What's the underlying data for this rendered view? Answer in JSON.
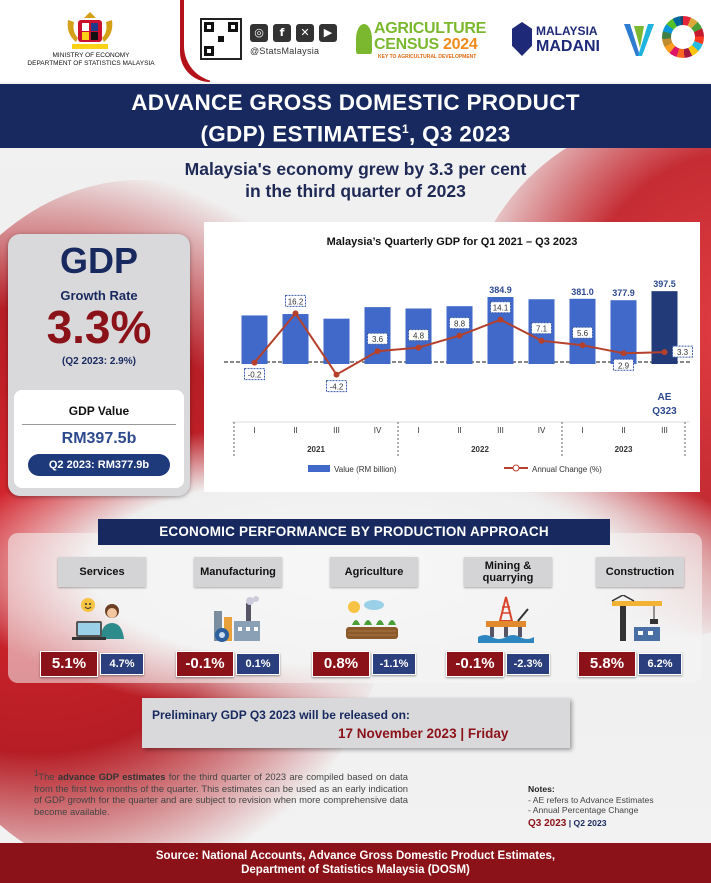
{
  "header": {
    "ministry_line1": "MINISTRY OF ECONOMY",
    "ministry_line2": "DEPARTMENT OF STATISTICS MALAYSIA",
    "social_handle": "@StatsMalaysia",
    "social_icons": [
      "instagram-icon",
      "facebook-icon",
      "x-icon",
      "youtube-icon"
    ],
    "agri_line1": "AGRICULTURE",
    "agri_line2": "CENSUS",
    "agri_year": "2024",
    "agri_tagline": "KEY TO AGRICULTURAL DEVELOPMENT",
    "madani_line1": "MALAYSIA",
    "madani_line2": "MADANI"
  },
  "title": {
    "line1": "ADVANCE GROSS DOMESTIC PRODUCT",
    "line2_a": "(GDP) ESTIMATES",
    "line2_sup": "1",
    "line2_b": ", Q3 2023"
  },
  "subtitle": {
    "line1": "Malaysia's economy grew by 3.3 per cent",
    "line2": "in the third quarter of 2023"
  },
  "gdp": {
    "heading": "GDP",
    "growth_label": "Growth Rate",
    "growth_value": "3.3%",
    "growth_prev": "(Q2 2023: 2.9%)",
    "value_label": "GDP Value",
    "value": "RM397.5b",
    "value_prev": "Q2 2023: RM377.9b"
  },
  "chart_data": {
    "type": "bar",
    "title": "Malaysia’s Quarterly GDP for Q1 2021 – Q3 2023",
    "categories": [
      "I",
      "II",
      "III",
      "IV",
      "I",
      "II",
      "III",
      "IV",
      "I",
      "II",
      "III"
    ],
    "year_labels": [
      "2021",
      "2022",
      "2023"
    ],
    "series": [
      {
        "name": "Value (RM billion)",
        "kind": "bar",
        "color": "#4169c9",
        "values": [
          345.0,
          348.0,
          338.0,
          363.0,
          360.0,
          365.0,
          384.9,
          380.0,
          381.0,
          377.9,
          397.5
        ],
        "labels": [
          "",
          "",
          "",
          "",
          "",
          "",
          "384.9",
          "",
          "381.0",
          "377.9",
          "397.5"
        ]
      },
      {
        "name": "Annual Change (%)",
        "kind": "line",
        "color": "#b5412c",
        "values": [
          -0.2,
          16.2,
          -4.2,
          3.6,
          4.8,
          8.8,
          14.1,
          7.1,
          5.6,
          2.9,
          3.3
        ],
        "labels": [
          "-0.2",
          "16.2",
          "-4.2",
          "3.6",
          "4.8",
          "8.8",
          "14.1",
          "7.1",
          "5.6",
          "2.9",
          "3.3"
        ]
      }
    ],
    "last_bar_color": "#233a78",
    "annotation": "AE\nQ323",
    "annotation_line1": "AE",
    "annotation_line2": "Q323"
  },
  "sectors": {
    "heading": "ECONOMIC PERFORMANCE BY PRODUCTION APPROACH",
    "items": [
      {
        "label": "Services",
        "icon": "services-icon",
        "value": "5.1%",
        "prev": "4.7%"
      },
      {
        "label": "Manufacturing",
        "icon": "manufacturing-icon",
        "value": "-0.1%",
        "prev": "0.1%"
      },
      {
        "label": "Agriculture",
        "icon": "agriculture-icon",
        "value": "0.8%",
        "prev": "-1.1%"
      },
      {
        "label": "Mining & quarrying",
        "icon": "mining-icon",
        "value": "-0.1%",
        "prev": "-2.3%"
      },
      {
        "label": "Construction",
        "icon": "construction-icon",
        "value": "5.8%",
        "prev": "6.2%"
      }
    ]
  },
  "release": {
    "line1": "Preliminary GDP Q3 2023 will be released on:",
    "line2": "17 November 2023 | Friday"
  },
  "footnote": {
    "sup": "1",
    "pre": "The ",
    "bold": "advance GDP estimates",
    "post": " for the third quarter of 2023 are compiled based on data from the first two months of the quarter. This estimates can be used as an early indication of GDP growth for the quarter and are subject to revision when more comprehensive data become available."
  },
  "notes": {
    "heading": "Notes:",
    "line1": "- AE refers to Advance Estimates",
    "line2": "- Annual Percentage Change",
    "legend_a": "Q3 2023",
    "legend_b": " | Q2 2023"
  },
  "footer": {
    "line1": "Source: National Accounts, Advance Gross Domestic Product Estimates,",
    "line2": "Department of Statistics Malaysia (DOSM)"
  },
  "colors": {
    "navy": "#17295e",
    "maroon": "#8b1218",
    "bar_blue": "#4169c9",
    "line_red": "#b5412c"
  }
}
